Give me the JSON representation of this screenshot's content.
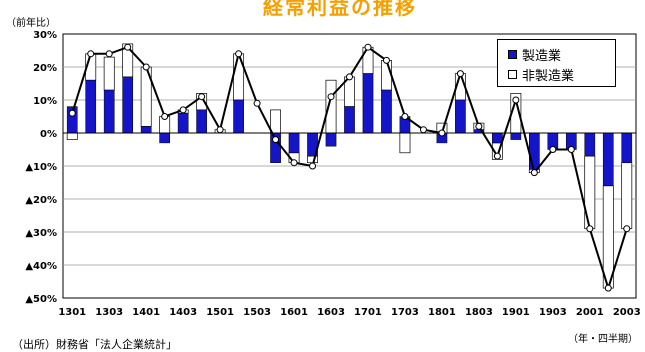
{
  "title": "経常利益の推移",
  "unit_y": "（前年比）",
  "unit_x": "（年・四半期）",
  "note": "（出所）財務省「法人企業統計」",
  "colors": {
    "manufacturing": "#1414c8",
    "line": "#000000",
    "nonmfg": "#ffffff",
    "title": "#f5a000"
  },
  "chart_data": {
    "type": "bar+line",
    "ylim": [
      -50,
      30
    ],
    "yticks": [
      30,
      20,
      10,
      0,
      -10,
      -20,
      -30,
      -40,
      -50
    ],
    "ytick_labels": [
      "30%",
      "20%",
      "10%",
      "0%",
      "▲10%",
      "▲20%",
      "▲30%",
      "▲40%",
      "▲50%"
    ],
    "x_tick_labels": [
      "1301",
      "1303",
      "1401",
      "1403",
      "1501",
      "1503",
      "1601",
      "1603",
      "1701",
      "1703",
      "1801",
      "1803",
      "1901",
      "1903",
      "2001",
      "2003"
    ],
    "categories": [
      "1301",
      "1302",
      "1303",
      "1304",
      "1401",
      "1402",
      "1403",
      "1404",
      "1501",
      "1502",
      "1503",
      "1504",
      "1601",
      "1602",
      "1603",
      "1604",
      "1701",
      "1702",
      "1703",
      "1704",
      "1801",
      "1802",
      "1803",
      "1804",
      "1901",
      "1902",
      "1903",
      "1904",
      "2001",
      "2002",
      "2003"
    ],
    "series": [
      {
        "name": "製造業",
        "values": [
          8,
          16,
          13,
          17,
          2,
          -3,
          6,
          7,
          0,
          10,
          0,
          -9,
          -6,
          -7,
          -4,
          8,
          18,
          13,
          5,
          0,
          -3,
          10,
          1,
          -3,
          -2,
          -11,
          -5,
          -5,
          -7,
          -16,
          -9
        ]
      },
      {
        "name": "非製造業",
        "values": [
          -2,
          8,
          10,
          10,
          18,
          5,
          1,
          5,
          1,
          14,
          0,
          7,
          -3,
          -2,
          16,
          9,
          8,
          9,
          -6,
          0,
          3,
          8,
          2,
          -5,
          12,
          -1,
          0,
          0,
          -22,
          -31,
          -20
        ]
      },
      {
        "name": "total",
        "values": [
          6,
          24,
          24,
          26,
          20,
          5,
          7,
          11,
          1,
          24,
          9,
          -2,
          -9,
          -10,
          11,
          17,
          26,
          22,
          5,
          1,
          0,
          18,
          2,
          -7,
          10,
          -12,
          -5,
          -5,
          -29,
          -47,
          -29
        ]
      }
    ],
    "grid": true,
    "legend_position": "top-right"
  }
}
